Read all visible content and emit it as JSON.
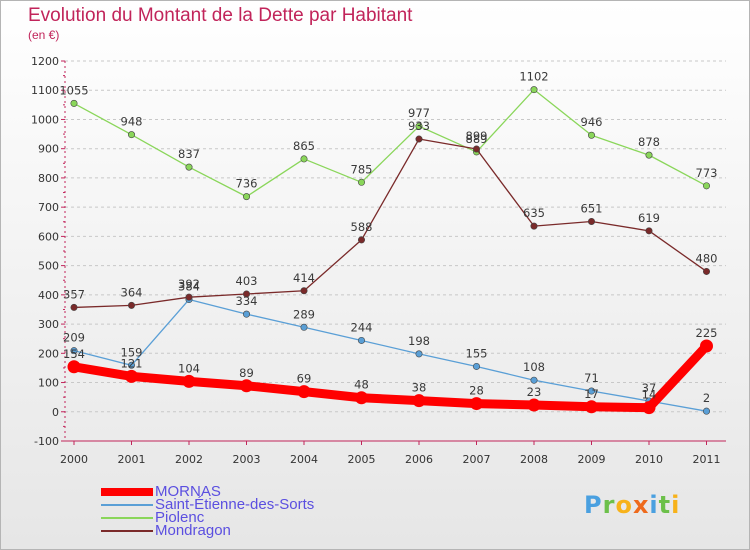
{
  "title": "Evolution du Montant de la Dette par Habitant",
  "subtitle": "(en €)",
  "logo": {
    "letters": [
      {
        "ch": "P",
        "color": "#4aa0e0"
      },
      {
        "ch": "r",
        "color": "#6cc04a"
      },
      {
        "ch": "o",
        "color": "#f7b21a"
      },
      {
        "ch": "x",
        "color": "#ee6a1c"
      },
      {
        "ch": "i",
        "color": "#4aa0e0"
      },
      {
        "ch": "t",
        "color": "#6cc04a"
      },
      {
        "ch": "i",
        "color": "#f7b21a"
      }
    ]
  },
  "chart_data": {
    "type": "line",
    "title": "Evolution du Montant de la Dette par Habitant",
    "ylabel": "(en €)",
    "xlabel": "",
    "x": [
      "2000",
      "2001",
      "2002",
      "2003",
      "2004",
      "2005",
      "2006",
      "2007",
      "2008",
      "2009",
      "2010",
      "2011"
    ],
    "ylim": [
      -100,
      1200
    ],
    "yticks": [
      -100,
      0,
      100,
      200,
      300,
      400,
      500,
      600,
      700,
      800,
      900,
      1000,
      1100,
      1200
    ],
    "grid": "horizontal dashed",
    "legend_position": "bottom-left",
    "series": [
      {
        "name": "MORNAS",
        "color": "#ff0000",
        "values": [
          154,
          121,
          104,
          89,
          69,
          48,
          38,
          28,
          23,
          17,
          14,
          225
        ]
      },
      {
        "name": "Saint-Étienne-des-Sorts",
        "color": "#5a9fd6",
        "values": [
          209,
          159,
          384,
          334,
          289,
          244,
          198,
          155,
          108,
          71,
          37,
          2
        ]
      },
      {
        "name": "Piolenc",
        "color": "#8ad65a",
        "values": [
          1055,
          948,
          837,
          736,
          865,
          785,
          977,
          889,
          1102,
          946,
          878,
          773
        ]
      },
      {
        "name": "Mondragon",
        "color": "#7a2a2a",
        "values": [
          357,
          364,
          392,
          403,
          414,
          588,
          933,
          899,
          635,
          651,
          619,
          480
        ]
      }
    ]
  }
}
